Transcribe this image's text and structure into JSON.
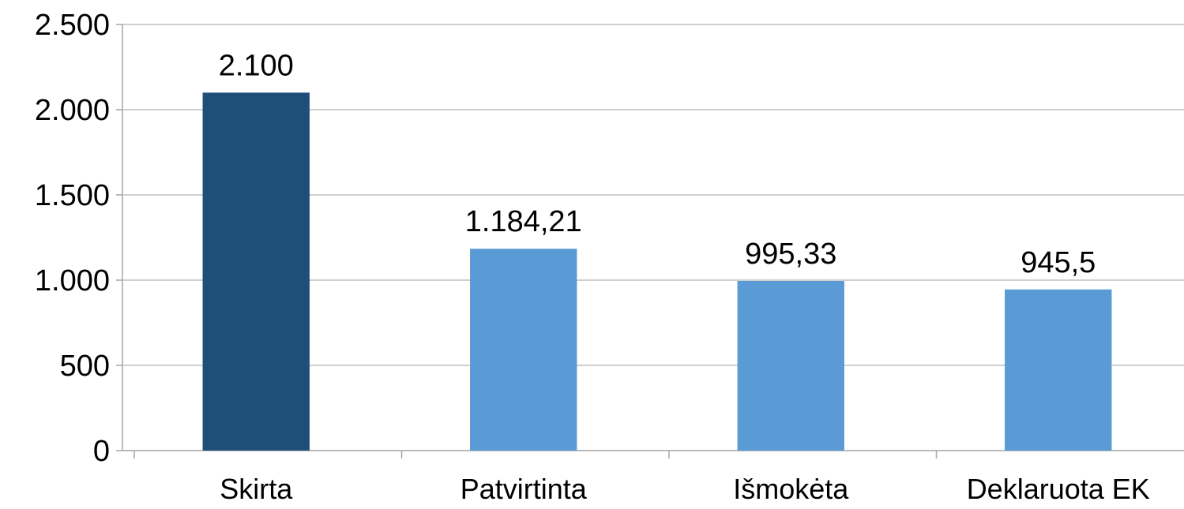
{
  "chart_data": {
    "type": "bar",
    "categories": [
      "Skirta",
      "Patvirtinta",
      "Išmokėta",
      "Deklaruota EK"
    ],
    "values": [
      2100,
      1184.21,
      995.33,
      945.5
    ],
    "data_labels": [
      "2.100",
      "1.184,21",
      "995,33",
      "945,5"
    ],
    "bar_colors": [
      "#1F4E79",
      "#5B9BD5",
      "#5B9BD5",
      "#5B9BD5"
    ],
    "ylim": [
      0,
      2500
    ],
    "yticks": [
      0,
      500,
      1000,
      1500,
      2000,
      2500
    ],
    "ytick_labels": [
      "0",
      "500",
      "1.000",
      "1.500",
      "2.000",
      "2.500"
    ],
    "grid": true,
    "grid_color": "#BFBFBF",
    "axis_color": "#A6A6A6",
    "title": "",
    "xlabel": "",
    "ylabel": ""
  }
}
